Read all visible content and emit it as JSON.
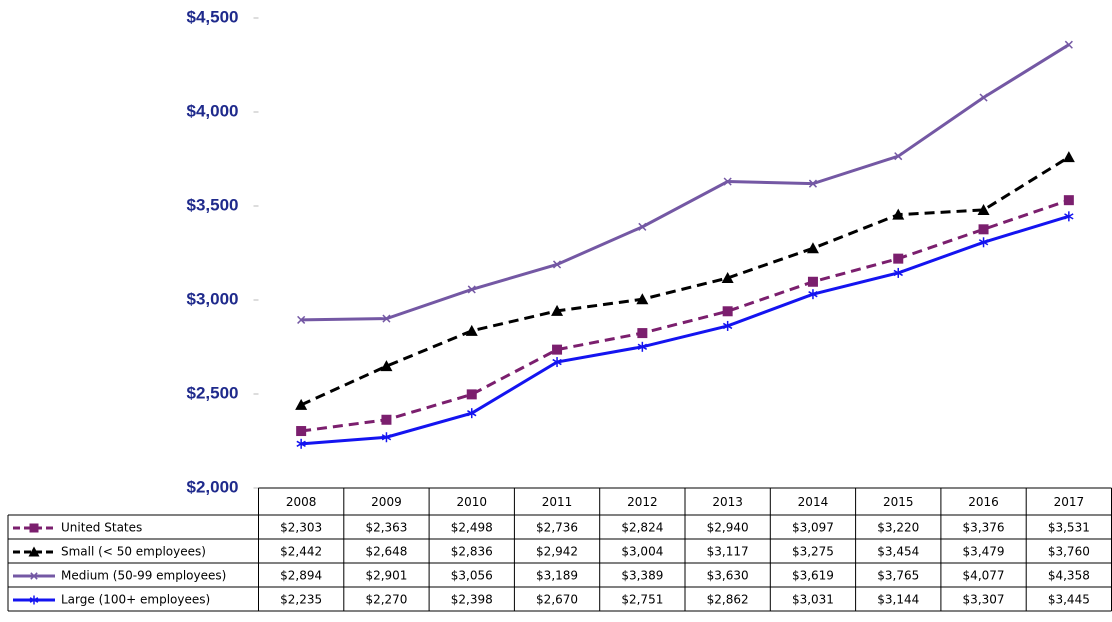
{
  "chart_data": {
    "type": "line",
    "categories": [
      "2008",
      "2009",
      "2010",
      "2011",
      "2012",
      "2013",
      "2014",
      "2015",
      "2016",
      "2017"
    ],
    "ylim": [
      2000,
      4500
    ],
    "yticks": [
      {
        "value": 2000,
        "label": "$2,000"
      },
      {
        "value": 2500,
        "label": "$2,500"
      },
      {
        "value": 3000,
        "label": "$3,000"
      },
      {
        "value": 3500,
        "label": "$3,500"
      },
      {
        "value": 4000,
        "label": "$4,000"
      },
      {
        "value": 4500,
        "label": "$4,500"
      }
    ],
    "series": [
      {
        "name": "United States",
        "color": "#7b1f6e",
        "dashed": true,
        "marker": "square",
        "values": [
          2303,
          2363,
          2498,
          2736,
          2824,
          2940,
          3097,
          3220,
          3376,
          3531
        ],
        "value_labels": [
          "$2,303",
          "$2,363",
          "$2,498",
          "$2,736",
          "$2,824",
          "$2,940",
          "$3,097",
          "$3,220",
          "$3,376",
          "$3,531"
        ]
      },
      {
        "name": "Small (< 50 employees)",
        "color": "#000000",
        "dashed": true,
        "marker": "triangle",
        "values": [
          2442,
          2648,
          2836,
          2942,
          3004,
          3117,
          3275,
          3454,
          3479,
          3760
        ],
        "value_labels": [
          "$2,442",
          "$2,648",
          "$2,836",
          "$2,942",
          "$3,004",
          "$3,117",
          "$3,275",
          "$3,454",
          "$3,479",
          "$3,760"
        ]
      },
      {
        "name": "Medium (50-99 employees)",
        "color": "#7458a4",
        "dashed": false,
        "marker": "x",
        "values": [
          2894,
          2901,
          3056,
          3189,
          3389,
          3630,
          3619,
          3765,
          4077,
          4358
        ],
        "value_labels": [
          "$2,894",
          "$2,901",
          "$3,056",
          "$3,189",
          "$3,389",
          "$3,630",
          "$3,619",
          "$3,765",
          "$4,077",
          "$4,358"
        ]
      },
      {
        "name": "Large (100+ employees)",
        "color": "#1414f0",
        "dashed": false,
        "marker": "asterisk",
        "values": [
          2235,
          2270,
          2398,
          2670,
          2751,
          2862,
          3031,
          3144,
          3307,
          3445
        ],
        "value_labels": [
          "$2,235",
          "$2,270",
          "$2,398",
          "$2,670",
          "$2,751",
          "$2,862",
          "$3,031",
          "$3,144",
          "$3,307",
          "$3,445"
        ]
      }
    ]
  }
}
